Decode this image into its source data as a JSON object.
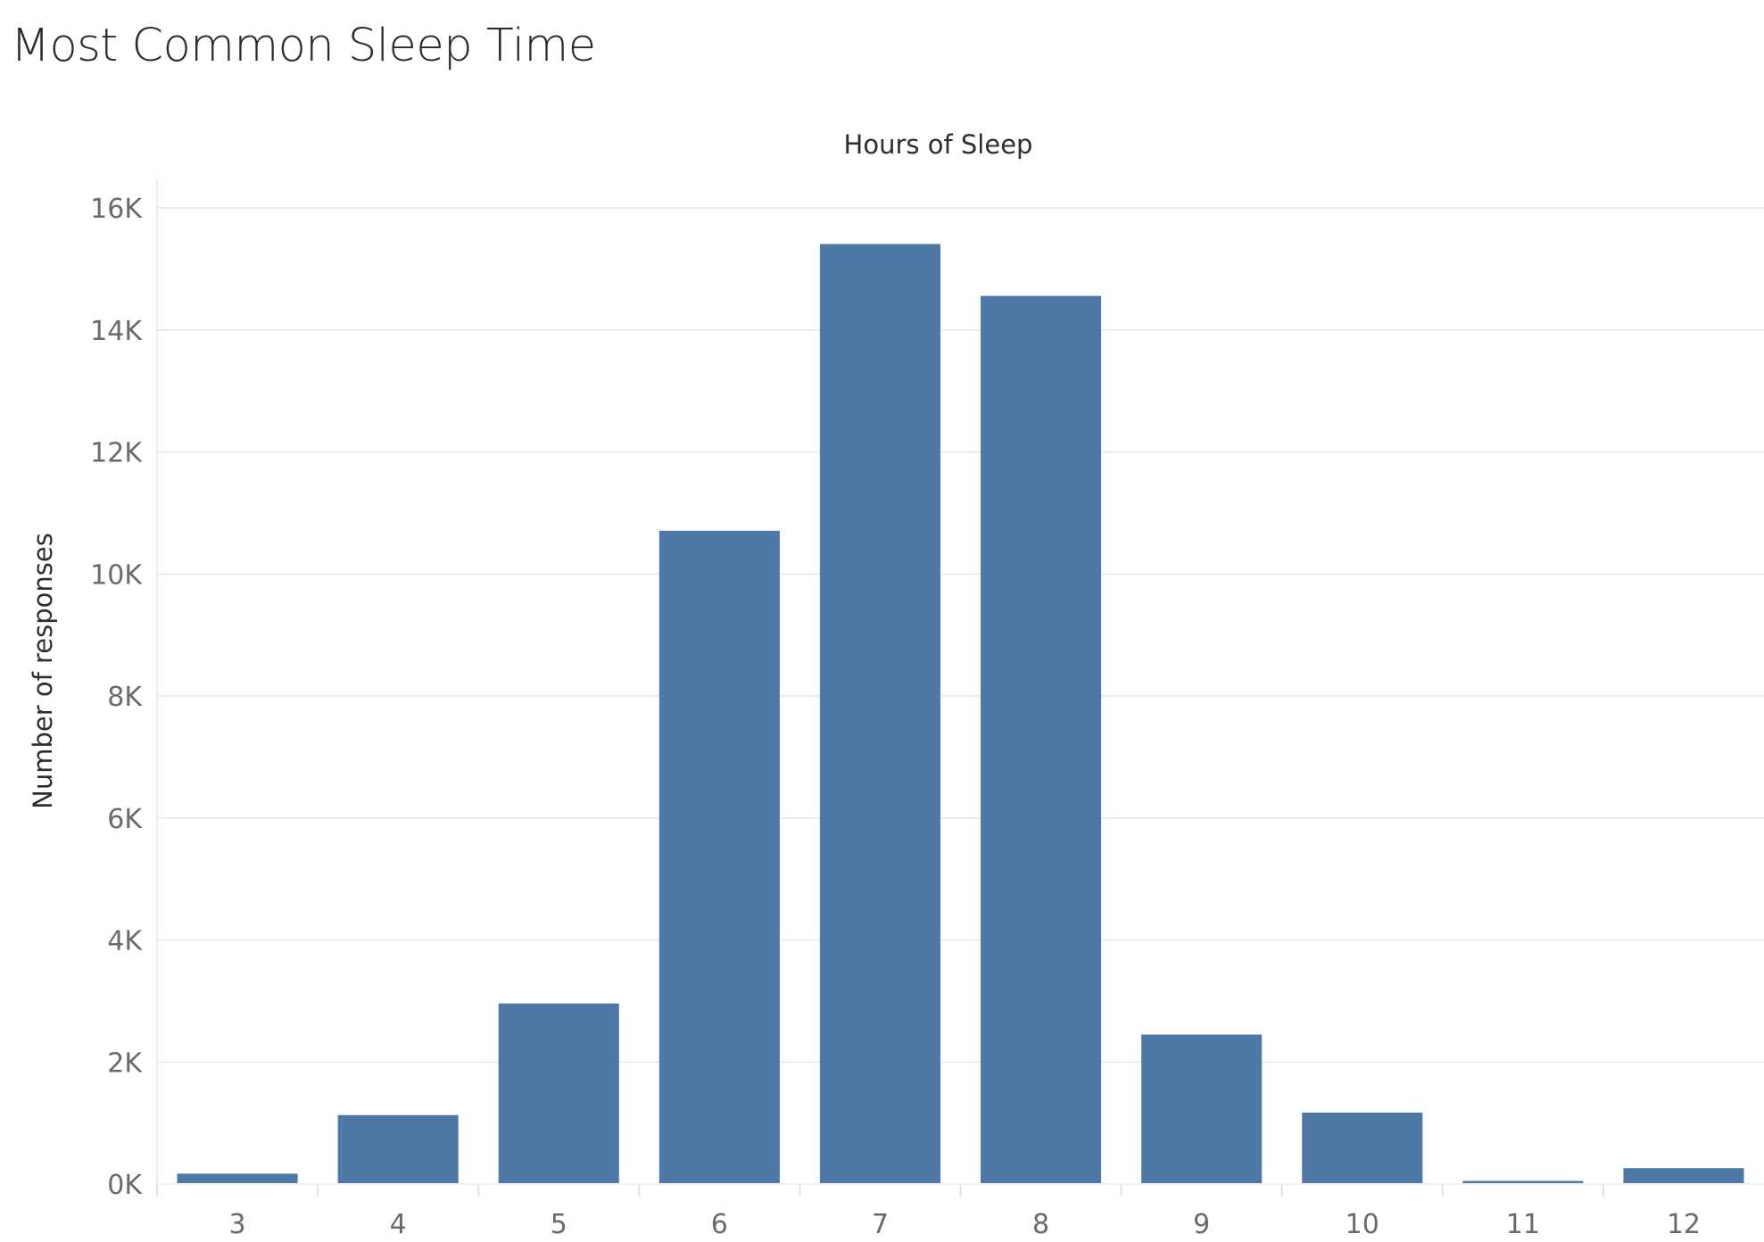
{
  "chart_data": {
    "type": "bar",
    "title": "Most Common Sleep Time",
    "column_header": "Hours of Sleep",
    "ylabel": "Number of responses",
    "categories": [
      "3",
      "4",
      "5",
      "6",
      "7",
      "8",
      "9",
      "10",
      "11",
      "12"
    ],
    "values": [
      170,
      1130,
      2960,
      10710,
      15410,
      14560,
      2450,
      1170,
      50,
      260
    ],
    "ylim": [
      0,
      16500
    ],
    "yticks": [
      0,
      2000,
      4000,
      6000,
      8000,
      10000,
      12000,
      14000,
      16000
    ],
    "ytick_labels": [
      "0K",
      "2K",
      "4K",
      "6K",
      "8K",
      "10K",
      "12K",
      "14K",
      "16K"
    ],
    "bar_color": "#4e79a7",
    "grid": true,
    "legend": "none"
  }
}
